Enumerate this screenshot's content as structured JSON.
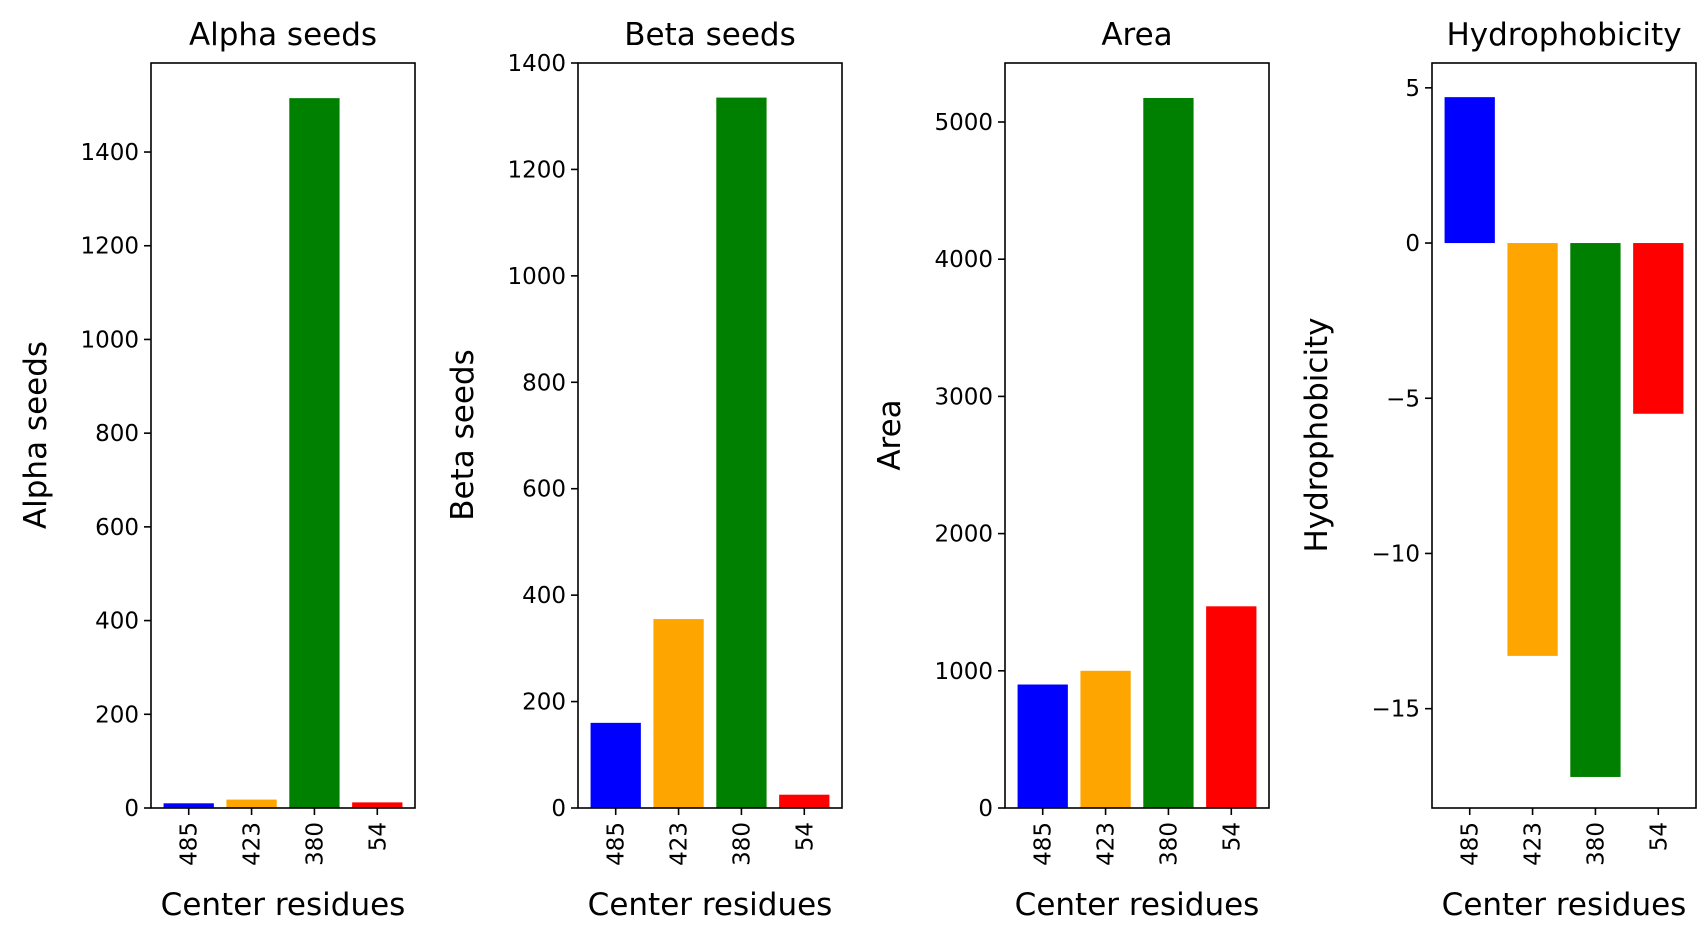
{
  "chart_data": [
    {
      "type": "bar",
      "title": "Alpha seeds",
      "xlabel": "Center residues",
      "ylabel": "Alpha seeds",
      "categories": [
        "485",
        "423",
        "380",
        "54"
      ],
      "values": [
        10,
        18,
        1515,
        12
      ],
      "colors": [
        "#0000ff",
        "#ffa500",
        "#008000",
        "#ff0000"
      ],
      "ylim": [
        0,
        1590
      ],
      "yticks": [
        0,
        200,
        400,
        600,
        800,
        1000,
        1200,
        1400
      ],
      "ytick_labels": [
        "0",
        "200",
        "400",
        "600",
        "800",
        "1000",
        "1200",
        "1400"
      ]
    },
    {
      "type": "bar",
      "title": "Beta seeds",
      "xlabel": "Center residues",
      "ylabel": "Beta seeds",
      "categories": [
        "485",
        "423",
        "380",
        "54"
      ],
      "values": [
        160,
        355,
        1335,
        25
      ],
      "colors": [
        "#0000ff",
        "#ffa500",
        "#008000",
        "#ff0000"
      ],
      "ylim": [
        0,
        1400
      ],
      "yticks": [
        0,
        200,
        400,
        600,
        800,
        1000,
        1200,
        1400
      ],
      "ytick_labels": [
        "0",
        "200",
        "400",
        "600",
        "800",
        "1000",
        "1200",
        "1400"
      ]
    },
    {
      "type": "bar",
      "title": "Area",
      "xlabel": "Center residues",
      "ylabel": "Area",
      "categories": [
        "485",
        "423",
        "380",
        "54"
      ],
      "values": [
        900,
        1000,
        5175,
        1470
      ],
      "colors": [
        "#0000ff",
        "#ffa500",
        "#008000",
        "#ff0000"
      ],
      "ylim": [
        0,
        5430
      ],
      "yticks": [
        0,
        1000,
        2000,
        3000,
        4000,
        5000
      ],
      "ytick_labels": [
        "0",
        "1000",
        "2000",
        "3000",
        "4000",
        "5000"
      ]
    },
    {
      "type": "bar",
      "title": "Hydrophobicity",
      "xlabel": "Center residues",
      "ylabel": "Hydrophobicity",
      "categories": [
        "485",
        "423",
        "380",
        "54"
      ],
      "values": [
        4.7,
        -13.3,
        -17.2,
        -5.5
      ],
      "colors": [
        "#0000ff",
        "#ffa500",
        "#008000",
        "#ff0000"
      ],
      "ylim": [
        -18.2,
        5.8
      ],
      "yticks": [
        -15,
        -10,
        -5,
        0,
        5
      ],
      "ytick_labels": [
        "−15",
        "−10",
        "−5",
        "0",
        "5"
      ]
    }
  ]
}
